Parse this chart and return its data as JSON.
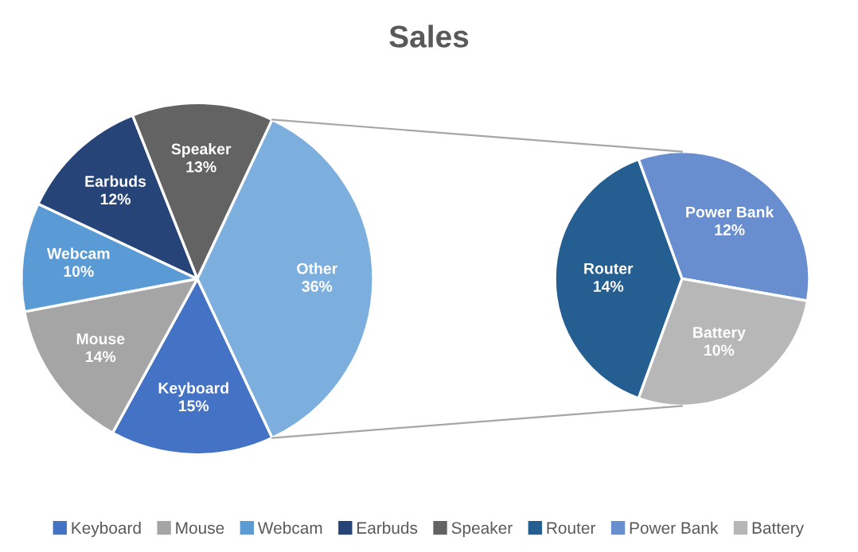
{
  "chart_data": [
    {
      "type": "pie",
      "title": "Sales",
      "categories": [
        "Keyboard",
        "Mouse",
        "Webcam",
        "Earbuds",
        "Speaker",
        "Other"
      ],
      "values": [
        15,
        14,
        10,
        12,
        13,
        36
      ],
      "colors": [
        "#4472c4",
        "#a5a5a5",
        "#5b9bd5",
        "#264478",
        "#636363",
        "#7cafdd"
      ],
      "value_labels": [
        "15%",
        "14%",
        "10%",
        "12%",
        "13%",
        "36%"
      ],
      "legend": "bottom"
    },
    {
      "type": "pie",
      "categories": [
        "Router",
        "Power Bank",
        "Battery"
      ],
      "values": [
        14,
        12,
        10
      ],
      "colors": [
        "#255e91",
        "#698ed0",
        "#b7b7b7"
      ],
      "value_labels": [
        "14%",
        "12%",
        "10%"
      ],
      "legend": "bottom"
    }
  ]
}
